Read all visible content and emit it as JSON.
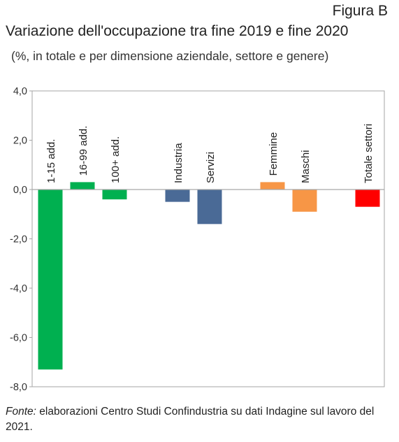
{
  "figure_label": "Figura B",
  "footer": {
    "source_prefix": "Fonte:",
    "source_text": " elaborazioni Centro Studi Confindustria su dati Indagine sul lavoro del 2021."
  },
  "chart_data": {
    "type": "bar",
    "title": "Variazione dell'occupazione tra fine 2019 e fine 2020",
    "subtitle": "(%, in totale e per dimensione aziendale, settore e genere)",
    "xlabel": "",
    "ylabel": "",
    "ylim": [
      -8.0,
      4.0
    ],
    "yticks": [
      "4,0",
      "2,0",
      "0,0",
      "-2,0",
      "-4,0",
      "-6,0",
      "-8,0"
    ],
    "ytick_values": [
      4,
      2,
      0,
      -2,
      -4,
      -6,
      -8
    ],
    "grid": false,
    "legend": "none",
    "categories": [
      "1-15 add.",
      "16-99 add.",
      "100+ add.",
      "Industria",
      "Servizi",
      "Femmine",
      "Maschi",
      "Totale settori"
    ],
    "values": [
      -7.3,
      0.3,
      -0.4,
      -0.5,
      -1.4,
      0.3,
      -0.9,
      -0.7
    ],
    "groups": [
      0,
      0,
      0,
      1,
      1,
      2,
      2,
      3
    ],
    "colors": [
      "#00b050",
      "#00b050",
      "#00b050",
      "#4a6a96",
      "#4a6a96",
      "#f79646",
      "#f79646",
      "#ff0000"
    ]
  }
}
